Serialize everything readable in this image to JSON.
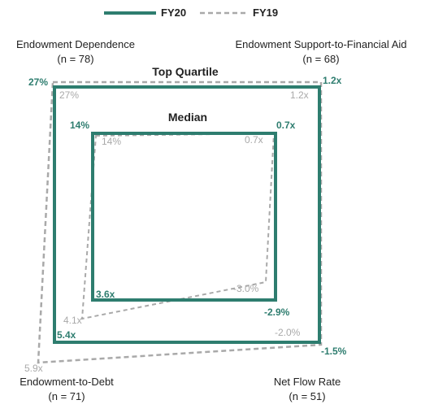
{
  "colors": {
    "fy20": "#2e7d6f",
    "fy19": "#a9a9a9",
    "text": "#222222"
  },
  "legend": {
    "fy20_label": "FY20",
    "fy19_label": "FY19"
  },
  "axes": {
    "top_left": {
      "name": "Endowment Dependence",
      "n_label": "(n = 78)"
    },
    "top_right": {
      "name": "Endowment Support-to-Financial Aid",
      "n_label": "(n = 68)"
    },
    "bottom_left": {
      "name": "Endowment-to-Debt",
      "n_label": "(n = 71)"
    },
    "bottom_right": {
      "name": "Net Flow Rate",
      "n_label": "(n = 51)"
    }
  },
  "group_labels": {
    "top_quartile": "Top Quartile",
    "median": "Median"
  },
  "chart_data": {
    "type": "quadrilateral-radar",
    "legend_placement": "top-center",
    "corners": [
      "Endowment Dependence",
      "Endowment Support-to-Financial Aid",
      "Net Flow Rate",
      "Endowment-to-Debt"
    ],
    "series": [
      {
        "name": "FY20",
        "groups": {
          "Top Quartile": {
            "labels": [
              "27%",
              "1.2x",
              "-1.5%",
              "5.4x"
            ]
          },
          "Median": {
            "labels": [
              "14%",
              "0.7x",
              "-2.9%",
              "3.6x"
            ]
          }
        }
      },
      {
        "name": "FY19",
        "groups": {
          "Top Quartile": {
            "labels": [
              "27%",
              "1.2x",
              "-2.0%",
              "5.9x"
            ]
          },
          "Median": {
            "labels": [
              "14%",
              "0.7x",
              "-3.0%",
              "4.1x"
            ]
          }
        }
      }
    ]
  }
}
